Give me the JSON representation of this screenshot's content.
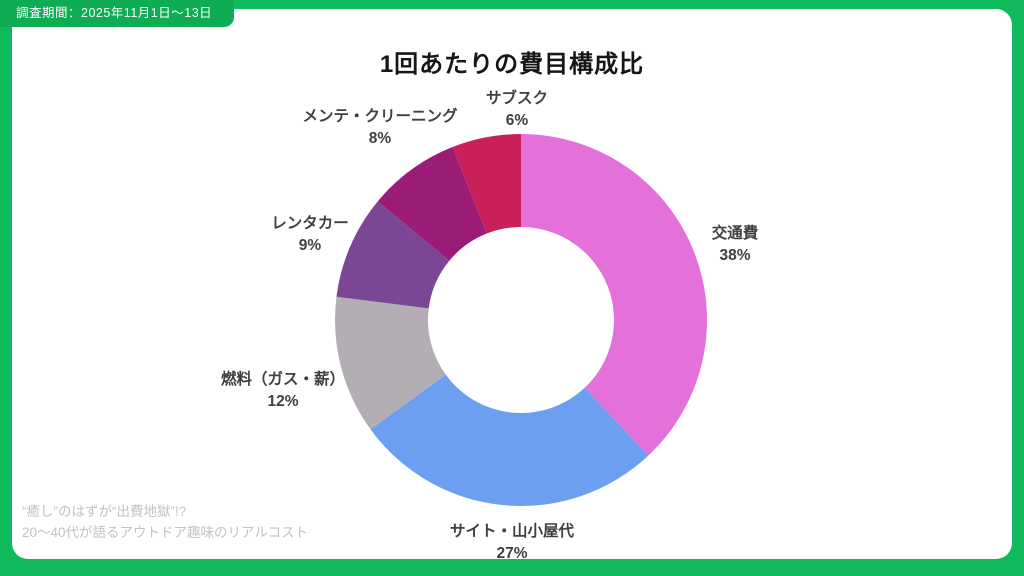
{
  "page": {
    "bg_color": "#10BA5C",
    "survey_period_label": "調査期間：2025年11月1日〜13日"
  },
  "title": "1回あたりの費目構成比",
  "footer": {
    "line1": "“癒し”のはずが“出費地獄”!?",
    "line2": "20〜40代が語るアウトドア趣味のリアルコスト"
  },
  "chart_data": {
    "type": "pie",
    "subtype": "donut",
    "title": "1回あたりの費目構成比",
    "start_angle_deg": 0,
    "direction": "clockwise",
    "inner_radius_ratio": 0.5,
    "legend": "none",
    "slices": [
      {
        "label": "交通費",
        "value": 38,
        "pct_label": "38%",
        "color": "#E371D9"
      },
      {
        "label": "サイト・山小屋代",
        "value": 27,
        "pct_label": "27%",
        "color": "#6C9FF0"
      },
      {
        "label": "燃料（ガス・薪）",
        "value": 12,
        "pct_label": "12%",
        "color": "#B3AEB3"
      },
      {
        "label": "レンタカー",
        "value": 9,
        "pct_label": "9%",
        "color": "#7B4795"
      },
      {
        "label": "メンテ・クリーニング",
        "value": 8,
        "pct_label": "8%",
        "color": "#9A1C76"
      },
      {
        "label": "サブスク",
        "value": 6,
        "pct_label": "6%",
        "color": "#C9205A"
      }
    ]
  }
}
